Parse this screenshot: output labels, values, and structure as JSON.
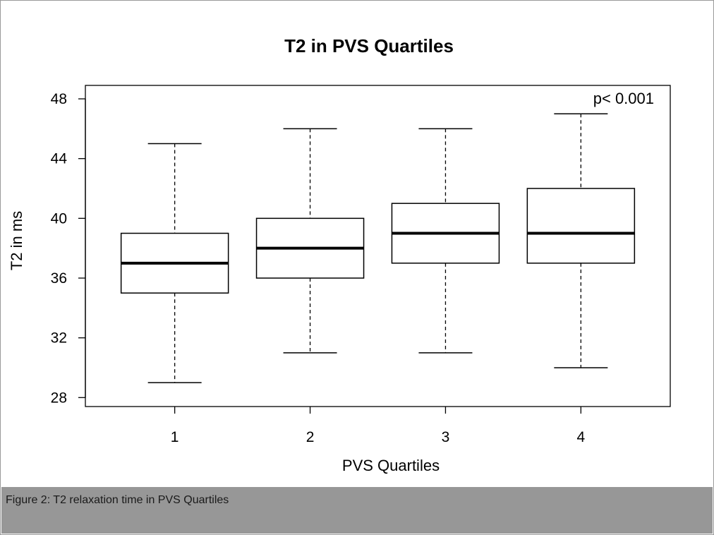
{
  "caption": "Figure 2: T2 relaxation time in PVS Quartiles",
  "chart_data": {
    "type": "box",
    "title": "T2 in PVS Quartiles",
    "xlabel": "PVS Quartiles",
    "ylabel": "T2 in ms",
    "annotation": "p< 0.001",
    "categories": [
      "1",
      "2",
      "3",
      "4"
    ],
    "ylim": [
      27.4,
      48.9
    ],
    "yticks": [
      28,
      32,
      36,
      40,
      44,
      48
    ],
    "boxes": [
      {
        "category": "1",
        "whisker_low": 29,
        "q1": 35,
        "median": 37,
        "q3": 39,
        "whisker_high": 45
      },
      {
        "category": "2",
        "whisker_low": 31,
        "q1": 36,
        "median": 38,
        "q3": 40,
        "whisker_high": 46
      },
      {
        "category": "3",
        "whisker_low": 31,
        "q1": 37,
        "median": 39,
        "q3": 41,
        "whisker_high": 46
      },
      {
        "category": "4",
        "whisker_low": 30,
        "q1": 37,
        "median": 39,
        "q3": 42,
        "whisker_high": 47
      }
    ],
    "grid": false,
    "colors": {
      "box_fill": "#ffffff",
      "stroke": "#000000"
    }
  }
}
